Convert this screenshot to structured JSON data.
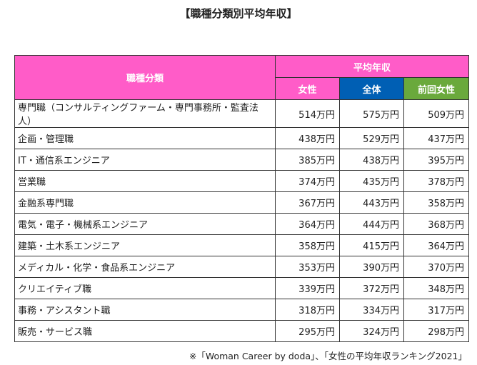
{
  "title": "【職種分類別平均年収】",
  "chart_data": {
    "type": "table",
    "title": "【職種分類別平均年収】",
    "header": {
      "category": "職種分類",
      "group": "平均年収",
      "columns": [
        "女性",
        "全体",
        "前回女性"
      ]
    },
    "colors": {
      "header": "#ff5cc8",
      "overall": "#005fb4",
      "previous": "#6aa93c"
    },
    "unit": "万円",
    "rows": [
      {
        "label": "専門職（コンサルティングファーム・専門事務所・監査法人）",
        "values": [
          "514万円",
          "575万円",
          "509万円"
        ]
      },
      {
        "label": "企画・管理職",
        "values": [
          "438万円",
          "529万円",
          "437万円"
        ]
      },
      {
        "label": "IT・通信系エンジニア",
        "values": [
          "385万円",
          "438万円",
          "395万円"
        ]
      },
      {
        "label": "営業職",
        "values": [
          "374万円",
          "435万円",
          "378万円"
        ]
      },
      {
        "label": "金融系専門職",
        "values": [
          "367万円",
          "443万円",
          "358万円"
        ]
      },
      {
        "label": "電気・電子・機械系エンジニア",
        "values": [
          "364万円",
          "444万円",
          "368万円"
        ]
      },
      {
        "label": "建築・土木系エンジニア",
        "values": [
          "358万円",
          "415万円",
          "364万円"
        ]
      },
      {
        "label": "メディカル・化学・食品系エンジニア",
        "values": [
          "353万円",
          "390万円",
          "370万円"
        ]
      },
      {
        "label": "クリエイティブ職",
        "values": [
          "339万円",
          "372万円",
          "348万円"
        ]
      },
      {
        "label": "事務・アシスタント職",
        "values": [
          "318万円",
          "334万円",
          "317万円"
        ]
      },
      {
        "label": "販売・サービス職",
        "values": [
          "295万円",
          "324万円",
          "298万円"
        ]
      }
    ]
  },
  "footnote": "※「Woman Career by doda」、「女性の平均年収ランキング2021」"
}
